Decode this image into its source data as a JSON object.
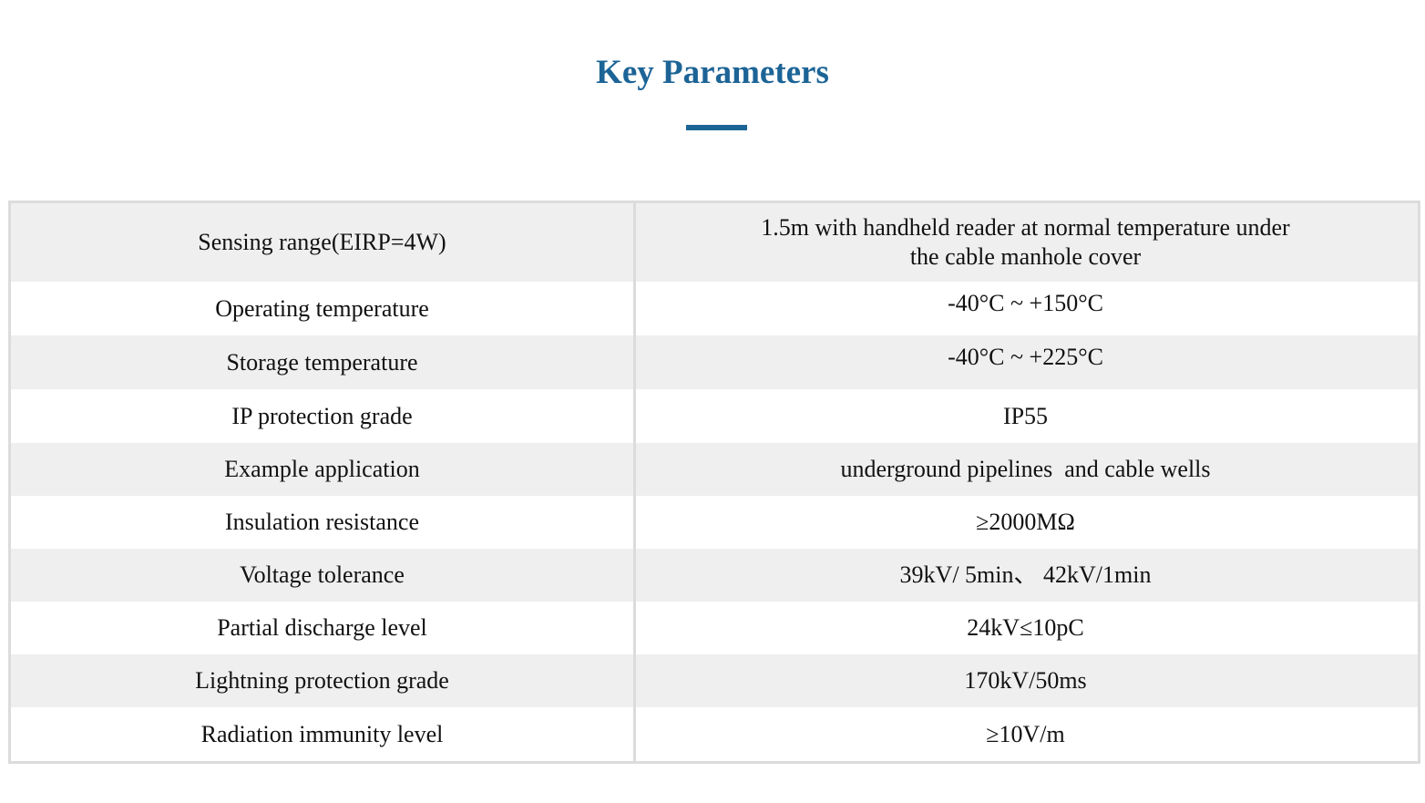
{
  "title": "Key Parameters",
  "colors": {
    "accent": "#1c6496",
    "row_shaded": "#efefef",
    "border": "#dcdcdc"
  },
  "rows": [
    {
      "param": "Sensing range(EIRP=4W)",
      "value_line1": "1.5m with handheld reader at normal temperature under",
      "value_line2": "the cable manhole cover"
    },
    {
      "param": "Operating temperature",
      "value": "-40°C ~ +150°C"
    },
    {
      "param": "Storage temperature",
      "value": "-40°C ~ +225°C"
    },
    {
      "param": "IP protection grade",
      "value": "IP55"
    },
    {
      "param": "Example application",
      "value": "underground pipelines  and cable wells"
    },
    {
      "param": "Insulation resistance",
      "value": "≥2000MΩ"
    },
    {
      "param": "Voltage tolerance",
      "value": "39kV/ 5min、 42kV/1min"
    },
    {
      "param": "Partial discharge level",
      "value": "24kV≤10pC"
    },
    {
      "param": "Lightning protection grade",
      "value": "170kV/50ms"
    },
    {
      "param": "Radiation immunity level",
      "value": "≥10V/m"
    }
  ]
}
